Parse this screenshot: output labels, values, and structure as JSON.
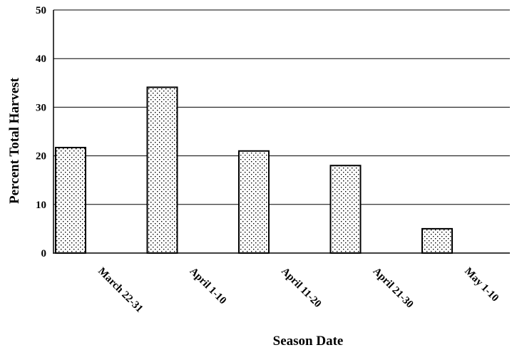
{
  "chart_data": {
    "type": "bar",
    "categories": [
      "March 22-31",
      "April 1-10",
      "April 11-20",
      "April 21-30",
      "May 1-10"
    ],
    "values": [
      21.7,
      34.1,
      21.0,
      18.0,
      5.0
    ],
    "title": "",
    "xlabel": "Season Date",
    "ylabel": "Percent Total Harvest",
    "ylim": [
      0,
      50
    ],
    "yticks": [
      0,
      10,
      20,
      30,
      40,
      50
    ],
    "grid": true,
    "legend": "none",
    "bar_fill": "dotted pattern",
    "colors": {
      "bar_fill": "#ffffff",
      "bar_dots": "#000000",
      "bar_stroke": "#000000",
      "grid": "#000000"
    }
  }
}
